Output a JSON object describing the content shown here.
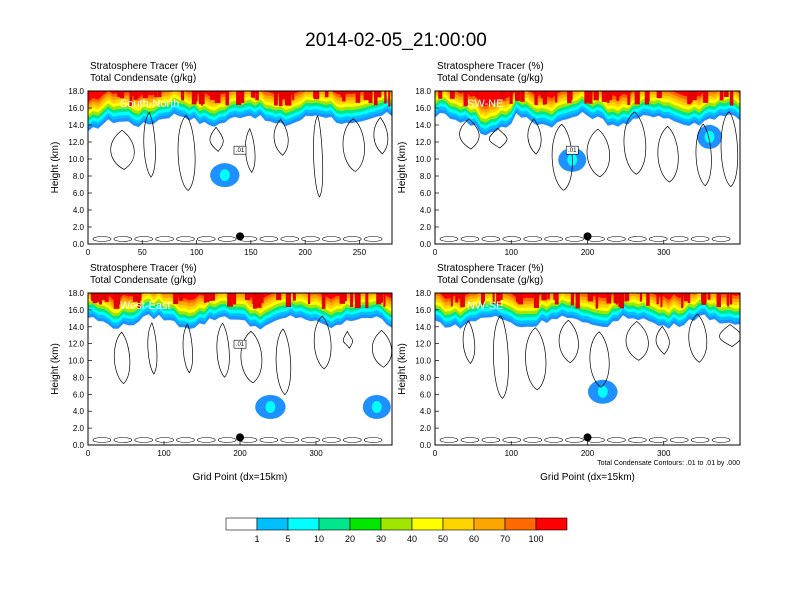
{
  "title": "2014-02-05_21:00:00",
  "colorbar": {
    "levels": [
      "1",
      "5",
      "10",
      "20",
      "30",
      "40",
      "50",
      "60",
      "70",
      "100"
    ],
    "colors": [
      "#ffffff",
      "#1e90ff",
      "#00bfff",
      "#00ffff",
      "#00e68c",
      "#00e600",
      "#a0e600",
      "#ffff00",
      "#ffd200",
      "#ffa500",
      "#ff6a00",
      "#ff0000"
    ]
  },
  "chart_data": [
    {
      "type": "heatmap",
      "name": "South-North",
      "toptitle": [
        "Stratosphere Tracer   (%)",
        "Total Condensate   (g/kg)"
      ],
      "ylabel": "Height (km)",
      "xlabel": "",
      "xlim": [
        0,
        280
      ],
      "ylim": [
        0,
        18
      ],
      "xticks": [
        "0",
        "50",
        "100",
        "150",
        "200",
        "250"
      ],
      "yticks": [
        "0.0",
        "2.0",
        "4.0",
        "6.0",
        "8.0",
        "10.0",
        "12.0",
        "14.0",
        "16.0",
        "18.0"
      ],
      "contour_label": ".01",
      "marker_x": 140,
      "footnote": ""
    },
    {
      "type": "heatmap",
      "name": "SW-NE",
      "toptitle": [
        "Stratosphere Tracer   (%)",
        "Total Condensate   (g/kg)"
      ],
      "ylabel": "Height (km)",
      "xlabel": "",
      "xlim": [
        0,
        400
      ],
      "ylim": [
        0,
        18
      ],
      "xticks": [
        "0",
        "100",
        "200",
        "300"
      ],
      "yticks": [
        "0.0",
        "2.0",
        "4.0",
        "6.0",
        "8.0",
        "10.0",
        "12.0",
        "14.0",
        "16.0",
        "18.0"
      ],
      "contour_label": ".01",
      "marker_x": 200,
      "footnote": ""
    },
    {
      "type": "heatmap",
      "name": "West-East",
      "toptitle": [
        "Stratosphere Tracer   (%)",
        "Total Condensate   (g/kg)"
      ],
      "ylabel": "Height (km)",
      "xlabel": "Grid Point (dx=15km)",
      "xlim": [
        0,
        400
      ],
      "ylim": [
        0,
        18
      ],
      "xticks": [
        "0",
        "100",
        "200",
        "300"
      ],
      "yticks": [
        "0.0",
        "2.0",
        "4.0",
        "6.0",
        "8.0",
        "10.0",
        "12.0",
        "14.0",
        "16.0",
        "18.0"
      ],
      "contour_label": ".01",
      "marker_x": 200,
      "footnote": ""
    },
    {
      "type": "heatmap",
      "name": "NW-SE",
      "toptitle": [
        "Stratosphere Tracer   (%)",
        "Total Condensate   (g/kg)"
      ],
      "ylabel": "Height (km)",
      "xlabel": "Grid Point (dx=15km)",
      "xlim": [
        0,
        400
      ],
      "ylim": [
        0,
        18
      ],
      "xticks": [
        "0",
        "100",
        "200",
        "300"
      ],
      "yticks": [
        "0.0",
        "2.0",
        "4.0",
        "6.0",
        "8.0",
        "10.0",
        "12.0",
        "14.0",
        "16.0",
        "18.0"
      ],
      "contour_label": "",
      "marker_x": 200,
      "footnote": "Total Condensate Contours: .01 to .01 by .000"
    }
  ]
}
